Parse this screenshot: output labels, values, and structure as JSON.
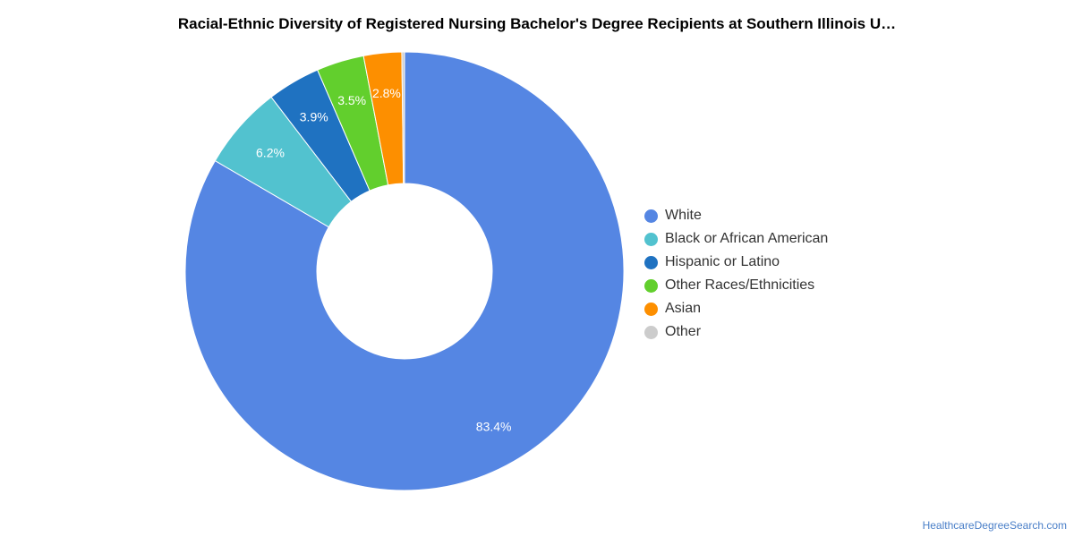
{
  "chart_data": {
    "type": "pie",
    "title": "Racial-Ethnic Diversity of Registered Nursing Bachelor's Degree Recipients at Southern Illinois U…",
    "categories": [
      "White",
      "Black or African American",
      "Hispanic or Latino",
      "Other Races/Ethnicities",
      "Asian",
      "Other"
    ],
    "values": [
      83.4,
      6.2,
      3.9,
      3.5,
      2.8,
      0.2
    ],
    "labels": [
      "83.4%",
      "6.2%",
      "3.9%",
      "3.5%",
      "2.8%",
      ""
    ],
    "colors": [
      "#5586e3",
      "#52c2cf",
      "#1f72c1",
      "#62cf2d",
      "#fd8f00",
      "#cccccc"
    ],
    "donut": true,
    "legend_position": "right"
  },
  "footer": "HealthcareDegreeSearch.com"
}
